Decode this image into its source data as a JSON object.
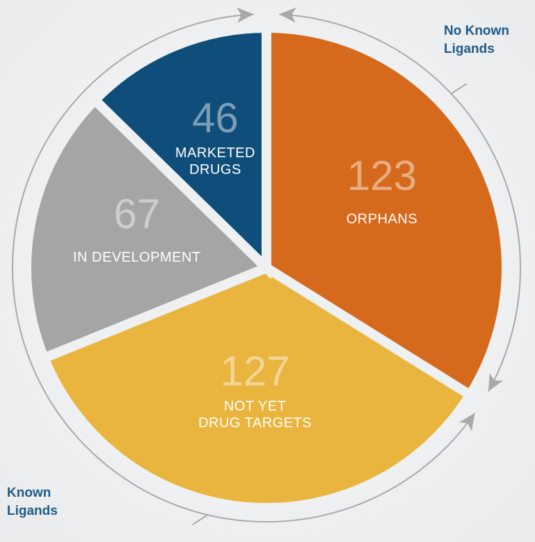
{
  "chart_data": {
    "type": "pie",
    "categories": [
      "ORPHANS",
      "NOT YET\nDRUG TARGETS",
      "IN DEVELOPMENT",
      "MARKETED\nDRUGS"
    ],
    "values": [
      123,
      127,
      67,
      46
    ],
    "colors": [
      "#d56a1c",
      "#e9b53f",
      "#a5a5a5",
      "#0f4e7a"
    ],
    "annotations": [
      "No Known\nLigands",
      "Known\nLigands"
    ]
  }
}
